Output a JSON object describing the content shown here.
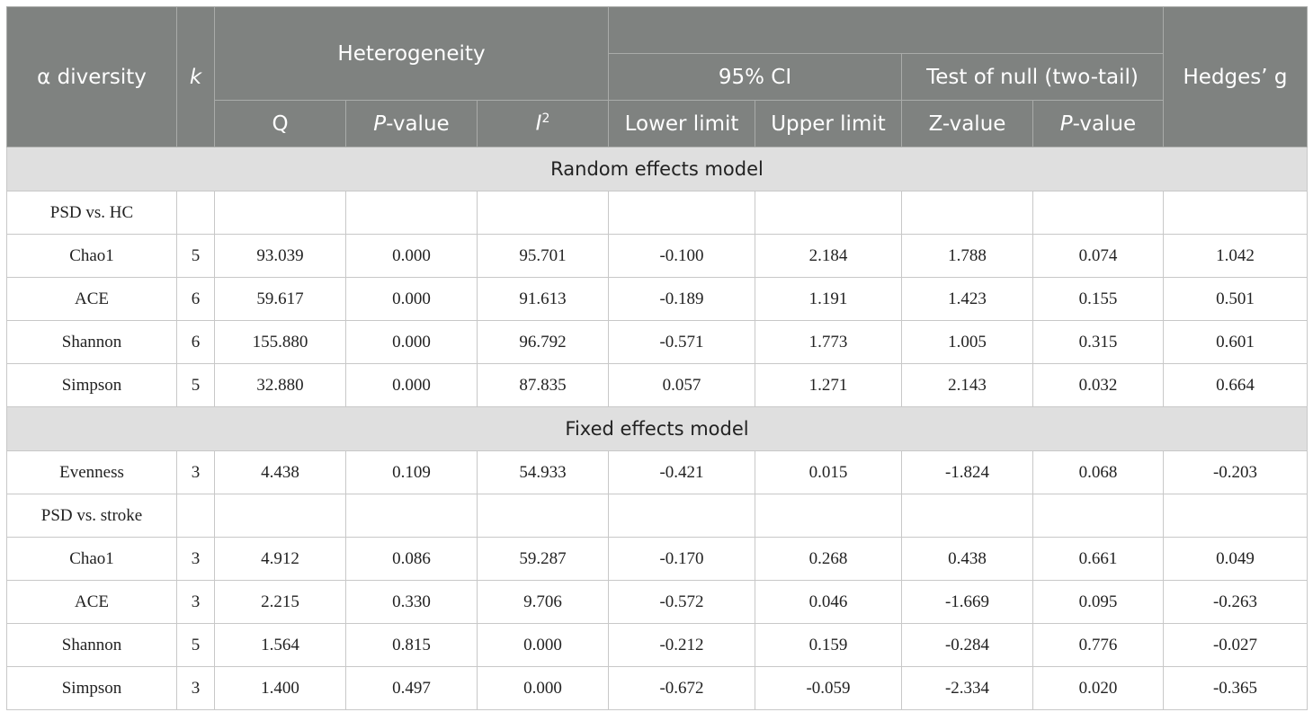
{
  "header": {
    "alpha_diversity": "α diversity",
    "k": "k",
    "heterogeneity": "Heterogeneity",
    "ci": "95% CI",
    "test_of_null": "Test of null (two-tail)",
    "hedges": "Hedges’ g",
    "q": "Q",
    "p_italic": "P",
    "p_suffix": "-value",
    "i_italic": "I",
    "i_sup": "2",
    "lower": "Lower limit",
    "upper": "Upper limit",
    "z_value": "Z-value"
  },
  "sections": {
    "random": "Random effects model",
    "fixed": "Fixed effects model"
  },
  "groups": {
    "psd_hc": "PSD vs. HC",
    "psd_stroke": "PSD vs. stroke"
  },
  "rows": {
    "hc_chao1": {
      "name": "Chao1",
      "k": "5",
      "q": "93.039",
      "p": "0.000",
      "i2": "95.701",
      "lower": "-0.100",
      "upper": "2.184",
      "z": "1.788",
      "pz": "0.074",
      "g": "1.042"
    },
    "hc_ace": {
      "name": "ACE",
      "k": "6",
      "q": "59.617",
      "p": "0.000",
      "i2": "91.613",
      "lower": "-0.189",
      "upper": "1.191",
      "z": "1.423",
      "pz": "0.155",
      "g": "0.501"
    },
    "hc_shannon": {
      "name": "Shannon",
      "k": "6",
      "q": "155.880",
      "p": "0.000",
      "i2": "96.792",
      "lower": "-0.571",
      "upper": "1.773",
      "z": "1.005",
      "pz": "0.315",
      "g": "0.601"
    },
    "hc_simpson": {
      "name": "Simpson",
      "k": "5",
      "q": "32.880",
      "p": "0.000",
      "i2": "87.835",
      "lower": "0.057",
      "upper": "1.271",
      "z": "2.143",
      "pz": "0.032",
      "g": "0.664"
    },
    "hc_evenness": {
      "name": "Evenness",
      "k": "3",
      "q": "4.438",
      "p": "0.109",
      "i2": "54.933",
      "lower": "-0.421",
      "upper": "0.015",
      "z": "-1.824",
      "pz": "0.068",
      "g": "-0.203"
    },
    "st_chao1": {
      "name": "Chao1",
      "k": "3",
      "q": "4.912",
      "p": "0.086",
      "i2": "59.287",
      "lower": "-0.170",
      "upper": "0.268",
      "z": "0.438",
      "pz": "0.661",
      "g": "0.049"
    },
    "st_ace": {
      "name": "ACE",
      "k": "3",
      "q": "2.215",
      "p": "0.330",
      "i2": "9.706",
      "lower": "-0.572",
      "upper": "0.046",
      "z": "-1.669",
      "pz": "0.095",
      "g": "-0.263"
    },
    "st_shannon": {
      "name": "Shannon",
      "k": "5",
      "q": "1.564",
      "p": "0.815",
      "i2": "0.000",
      "lower": "-0.212",
      "upper": "0.159",
      "z": "-0.284",
      "pz": "0.776",
      "g": "-0.027"
    },
    "st_simpson": {
      "name": "Simpson",
      "k": "3",
      "q": "1.400",
      "p": "0.497",
      "i2": "0.000",
      "lower": "-0.672",
      "upper": "-0.059",
      "z": "-2.334",
      "pz": "0.020",
      "g": "-0.365"
    }
  }
}
